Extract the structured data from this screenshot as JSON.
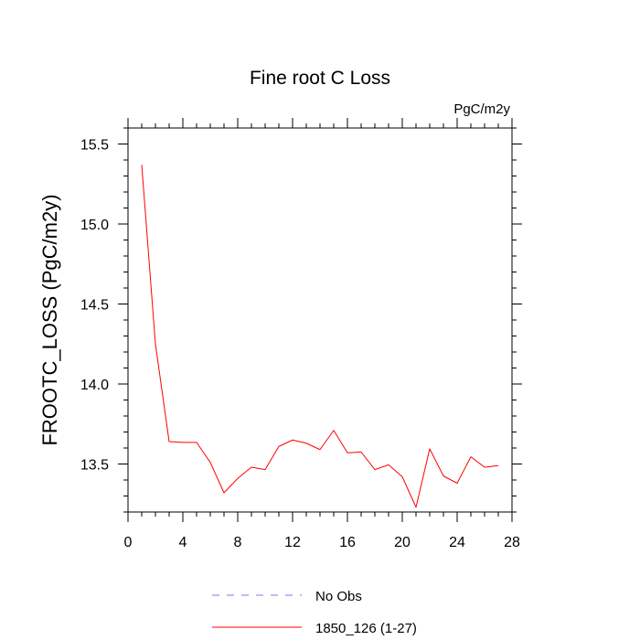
{
  "chart_data": {
    "type": "line",
    "title": "Fine root C Loss",
    "units_label": "PgC/m2y",
    "ylabel": "FROOTC_LOSS  (PgC/m2y)",
    "xlabel": "",
    "xlim": [
      0,
      28
    ],
    "ylim": [
      13.2,
      15.6
    ],
    "xticks": [
      0,
      4,
      8,
      12,
      16,
      20,
      24,
      28
    ],
    "yticks": [
      13.5,
      14.0,
      14.5,
      15.0,
      15.5
    ],
    "xtick_labels": [
      "0",
      "4",
      "8",
      "12",
      "16",
      "20",
      "24",
      "28"
    ],
    "ytick_labels": [
      "13.5",
      "14.0",
      "14.5",
      "15.0",
      "15.5"
    ],
    "grid": false,
    "legend_position": "bottom-center",
    "series": [
      {
        "name": "1850_126 (1-27)",
        "color": "#ff0000",
        "style": "solid",
        "x": [
          1,
          2,
          3,
          4,
          5,
          6,
          7,
          8,
          9,
          10,
          11,
          12,
          13,
          14,
          15,
          16,
          17,
          18,
          19,
          20,
          21,
          22,
          23,
          24,
          25,
          26,
          27
        ],
        "y": [
          15.37,
          14.25,
          13.64,
          13.635,
          13.635,
          13.51,
          13.32,
          13.41,
          13.48,
          13.465,
          13.61,
          13.65,
          13.63,
          13.59,
          13.71,
          13.57,
          13.575,
          13.465,
          13.495,
          13.42,
          13.23,
          13.595,
          13.425,
          13.38,
          13.545,
          13.48,
          13.49
        ]
      }
    ],
    "legend": [
      {
        "label": "No Obs",
        "color": "#7777ff",
        "style": "dashed"
      },
      {
        "label": "1850_126 (1-27)",
        "color": "#ff0000",
        "style": "solid"
      }
    ]
  }
}
